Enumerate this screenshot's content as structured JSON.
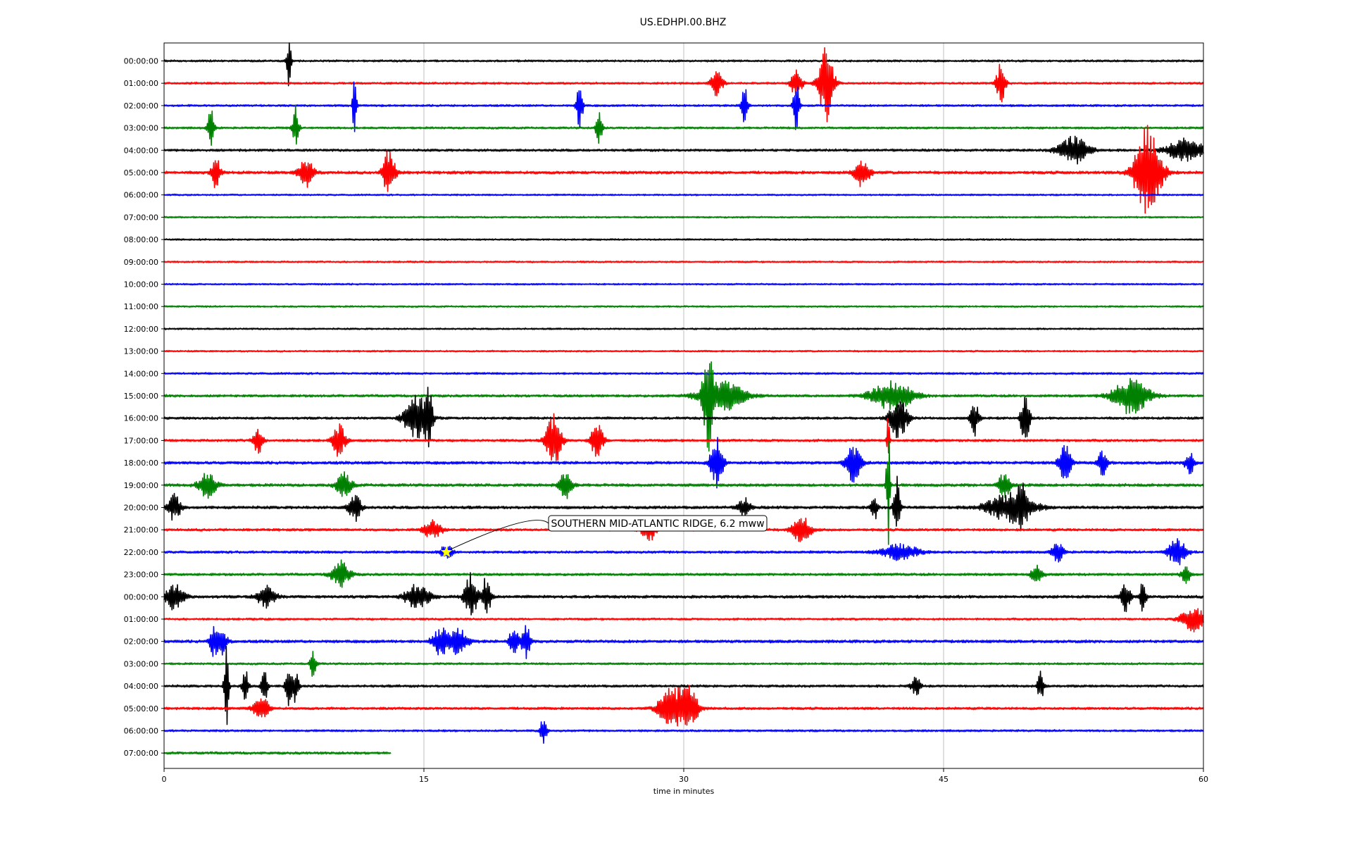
{
  "chart_data": {
    "type": "line",
    "title": "US.EDHPI.00.BHZ",
    "xlabel": "time in minutes",
    "ylabel": "",
    "xlim": [
      0,
      60
    ],
    "x_ticks": [
      0,
      15,
      30,
      45,
      60
    ],
    "grid": "vertical",
    "trace_colors": [
      "#000000",
      "#ff0000",
      "#0000ff",
      "#008000"
    ],
    "row_labels": [
      "00:00:00",
      "01:00:00",
      "02:00:00",
      "03:00:00",
      "04:00:00",
      "05:00:00",
      "06:00:00",
      "07:00:00",
      "08:00:00",
      "09:00:00",
      "10:00:00",
      "11:00:00",
      "12:00:00",
      "13:00:00",
      "14:00:00",
      "15:00:00",
      "16:00:00",
      "17:00:00",
      "18:00:00",
      "19:00:00",
      "20:00:00",
      "21:00:00",
      "22:00:00",
      "23:00:00",
      "00:00:00",
      "01:00:00",
      "02:00:00",
      "03:00:00",
      "04:00:00",
      "05:00:00",
      "06:00:00",
      "07:00:00"
    ],
    "row_durations_min": [
      60,
      60,
      60,
      60,
      60,
      60,
      60,
      60,
      60,
      60,
      60,
      60,
      60,
      60,
      60,
      60,
      60,
      60,
      60,
      60,
      60,
      60,
      60,
      60,
      60,
      60,
      60,
      60,
      60,
      60,
      60,
      13.1
    ],
    "noise_levels": [
      0.5,
      0.5,
      0.5,
      0.5,
      0.6,
      0.7,
      0.4,
      0.4,
      0.4,
      0.4,
      0.4,
      0.4,
      0.4,
      0.4,
      0.5,
      0.6,
      0.6,
      0.6,
      0.7,
      0.7,
      0.7,
      0.6,
      0.6,
      0.6,
      0.7,
      0.5,
      0.7,
      0.5,
      0.6,
      0.6,
      0.5,
      0.6
    ],
    "events": [
      [
        0,
        7.2,
        1.6,
        0.15
      ],
      [
        1,
        38.2,
        2.6,
        0.5
      ],
      [
        1,
        48.3,
        1.3,
        0.3
      ],
      [
        1,
        31.9,
        0.8,
        0.4
      ],
      [
        1,
        36.5,
        0.8,
        0.4
      ],
      [
        2,
        11.0,
        2.4,
        0.12
      ],
      [
        2,
        24.0,
        1.6,
        0.2
      ],
      [
        2,
        33.5,
        1.6,
        0.2
      ],
      [
        2,
        36.5,
        1.8,
        0.2
      ],
      [
        3,
        2.7,
        1.3,
        0.2
      ],
      [
        3,
        7.6,
        1.4,
        0.2
      ],
      [
        3,
        25.1,
        1.2,
        0.2
      ],
      [
        4,
        52.5,
        0.9,
        1.0
      ],
      [
        4,
        59.0,
        0.8,
        1.2
      ],
      [
        5,
        3.0,
        1.0,
        0.3
      ],
      [
        5,
        8.2,
        0.9,
        0.5
      ],
      [
        5,
        13.0,
        1.6,
        0.4
      ],
      [
        5,
        40.3,
        0.9,
        0.5
      ],
      [
        5,
        56.8,
        3.0,
        0.9
      ],
      [
        15,
        31.4,
        3.2,
        0.3
      ],
      [
        15,
        32.2,
        1.0,
        1.5
      ],
      [
        15,
        42.0,
        1.0,
        1.4
      ],
      [
        15,
        55.8,
        1.2,
        1.2
      ],
      [
        16,
        14.6,
        1.6,
        0.8
      ],
      [
        16,
        15.3,
        1.8,
        0.2
      ],
      [
        16,
        42.4,
        1.3,
        0.6
      ],
      [
        16,
        46.8,
        1.1,
        0.3
      ],
      [
        16,
        49.7,
        1.6,
        0.3
      ],
      [
        17,
        5.4,
        1.0,
        0.3
      ],
      [
        17,
        10.1,
        1.1,
        0.4
      ],
      [
        17,
        22.5,
        1.8,
        0.5
      ],
      [
        17,
        25.0,
        1.2,
        0.4
      ],
      [
        17,
        41.8,
        1.6,
        0.1
      ],
      [
        18,
        31.9,
        1.8,
        0.4
      ],
      [
        18,
        39.8,
        1.2,
        0.5
      ],
      [
        18,
        52.0,
        1.2,
        0.4
      ],
      [
        18,
        54.2,
        0.9,
        0.3
      ],
      [
        18,
        59.2,
        0.8,
        0.3
      ],
      [
        19,
        2.5,
        0.8,
        0.6
      ],
      [
        19,
        10.4,
        0.8,
        0.5
      ],
      [
        19,
        23.2,
        1.0,
        0.4
      ],
      [
        19,
        41.8,
        4.2,
        0.12
      ],
      [
        19,
        48.5,
        0.8,
        0.4
      ],
      [
        20,
        0.6,
        0.9,
        0.4
      ],
      [
        20,
        11.0,
        1.0,
        0.4
      ],
      [
        20,
        33.5,
        0.6,
        0.4
      ],
      [
        20,
        41.0,
        0.9,
        0.2
      ],
      [
        20,
        42.3,
        2.2,
        0.2
      ],
      [
        20,
        48.9,
        0.9,
        1.6
      ],
      [
        20,
        49.5,
        1.0,
        0.4
      ],
      [
        21,
        15.5,
        0.6,
        0.6
      ],
      [
        21,
        28.0,
        0.7,
        0.5
      ],
      [
        21,
        36.8,
        0.9,
        0.6
      ],
      [
        22,
        16.3,
        0.5,
        0.4
      ],
      [
        22,
        42.5,
        0.5,
        1.2
      ],
      [
        22,
        51.6,
        0.6,
        0.4
      ],
      [
        22,
        58.5,
        0.9,
        0.6
      ],
      [
        23,
        10.2,
        0.9,
        0.6
      ],
      [
        23,
        50.4,
        0.6,
        0.4
      ],
      [
        23,
        59.0,
        0.6,
        0.3
      ],
      [
        24,
        0.6,
        0.9,
        0.6
      ],
      [
        24,
        5.9,
        0.7,
        0.6
      ],
      [
        24,
        14.6,
        0.8,
        0.8
      ],
      [
        24,
        17.7,
        1.6,
        0.4
      ],
      [
        24,
        18.6,
        1.3,
        0.3
      ],
      [
        24,
        55.5,
        1.0,
        0.3
      ],
      [
        24,
        56.5,
        1.1,
        0.2
      ],
      [
        25,
        59.4,
        0.8,
        0.8
      ],
      [
        26,
        2.9,
        0.9,
        0.3
      ],
      [
        26,
        3.3,
        0.8,
        0.4
      ],
      [
        26,
        16.0,
        0.9,
        0.6
      ],
      [
        26,
        17.0,
        0.9,
        0.6
      ],
      [
        26,
        20.2,
        1.1,
        0.3
      ],
      [
        26,
        20.9,
        1.1,
        0.3
      ],
      [
        27,
        8.6,
        0.9,
        0.2
      ],
      [
        28,
        3.6,
        2.7,
        0.15
      ],
      [
        28,
        4.7,
        1.1,
        0.2
      ],
      [
        28,
        5.8,
        1.1,
        0.2
      ],
      [
        28,
        7.2,
        1.6,
        0.2
      ],
      [
        28,
        7.6,
        1.2,
        0.2
      ],
      [
        28,
        43.4,
        0.6,
        0.3
      ],
      [
        28,
        50.6,
        1.0,
        0.2
      ],
      [
        29,
        5.6,
        0.8,
        0.5
      ],
      [
        29,
        29.3,
        1.6,
        0.8
      ],
      [
        29,
        30.3,
        1.3,
        0.6
      ],
      [
        30,
        21.9,
        1.0,
        0.2
      ]
    ],
    "annotation": {
      "text": "SOUTHERN MID-ATLANTIC RIDGE, 6.2 mww",
      "row": 22,
      "minute": 16.3,
      "marker": "star",
      "marker_color": "#ffff00"
    }
  }
}
